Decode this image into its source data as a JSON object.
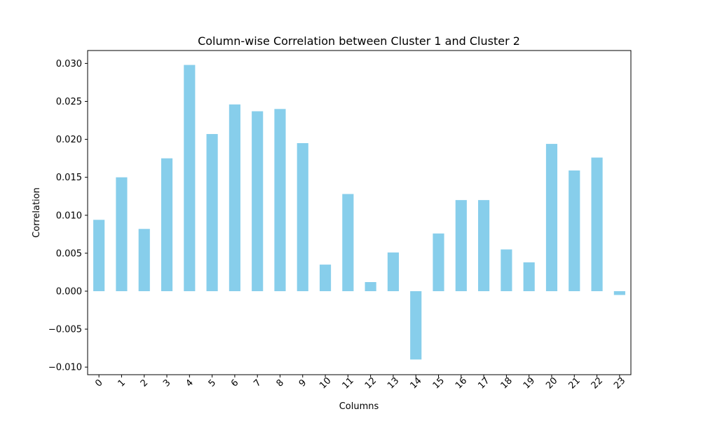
{
  "chart_data": {
    "type": "bar",
    "title": "Column-wise Correlation between Cluster 1 and Cluster 2",
    "xlabel": "Columns",
    "ylabel": "Correlation",
    "categories": [
      "0",
      "1",
      "2",
      "3",
      "4",
      "5",
      "6",
      "7",
      "8",
      "9",
      "10",
      "11",
      "12",
      "13",
      "14",
      "15",
      "16",
      "17",
      "18",
      "19",
      "20",
      "21",
      "22",
      "23"
    ],
    "values": [
      0.0094,
      0.015,
      0.0082,
      0.0175,
      0.0298,
      0.0207,
      0.0246,
      0.0237,
      0.024,
      0.0195,
      0.0035,
      0.0128,
      0.0012,
      0.0051,
      -0.009,
      0.0076,
      0.012,
      0.012,
      0.0055,
      0.0038,
      0.0194,
      0.0159,
      0.0176,
      -0.0005
    ],
    "ylim": [
      -0.011,
      0.0317
    ],
    "yticks": [
      -0.01,
      -0.005,
      0.0,
      0.005,
      0.01,
      0.015,
      0.02,
      0.025,
      0.03
    ],
    "ytick_labels": [
      "−0.010",
      "−0.005",
      "0.000",
      "0.005",
      "0.010",
      "0.015",
      "0.020",
      "0.025",
      "0.030"
    ],
    "xtick_rotation_deg": -45,
    "bar_color": "#87ceeb",
    "grid": false,
    "legend": "none"
  }
}
